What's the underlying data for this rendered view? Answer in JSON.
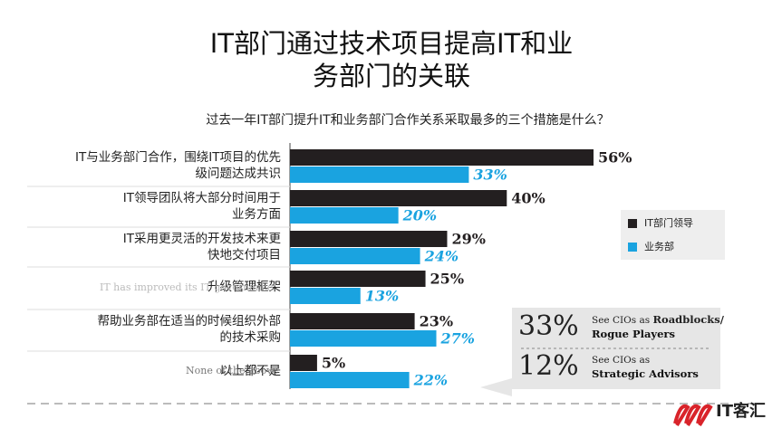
{
  "chart_data": {
    "type": "hbar",
    "title": [
      "IT部门通过技术项目提高IT和业",
      "务部门的关联"
    ],
    "subtitle": "过去一年IT部门提升IT和业务部门合作关系采取最多的三个措施是什么？",
    "categories": [
      [
        "IT与业务部门合作，围绕IT项目的优先",
        "级问题达成共识"
      ],
      [
        "IT领导团队将大部分时间用于",
        "业务方面"
      ],
      [
        "IT采用更灵活的开发技术来更",
        "快地交付项目"
      ],
      [
        "升级管理框架"
      ],
      [
        "帮助业务部在适当的时候组织外部",
        "的技术采购"
      ],
      [
        "以上都不是"
      ]
    ],
    "series": [
      {
        "name": "IT部门领导",
        "color": "#231f20",
        "values": [
          56,
          40,
          29,
          25,
          23,
          5
        ],
        "value_labels": [
          "56%",
          "40%",
          "29%",
          "25%",
          "23%",
          "5%"
        ]
      },
      {
        "name": "业务部",
        "color": "#1aa3e0",
        "values": [
          33,
          20,
          24,
          13,
          27,
          22
        ],
        "value_labels": [
          "33%",
          "20%",
          "24%",
          "13%",
          "27%",
          "22%"
        ]
      }
    ],
    "ghost_labels": [
      "IT has improved its IT governance",
      "None of the above"
    ],
    "callout": [
      {
        "value": 33,
        "label": "33%",
        "text": [
          "See CIOs as ",
          "Roadblocks/",
          "Rogue Players"
        ]
      },
      {
        "value": 12,
        "label": "12%",
        "text": [
          "See CIOs as",
          "Strategic Advisors"
        ]
      }
    ],
    "logo": "IT客汇"
  }
}
